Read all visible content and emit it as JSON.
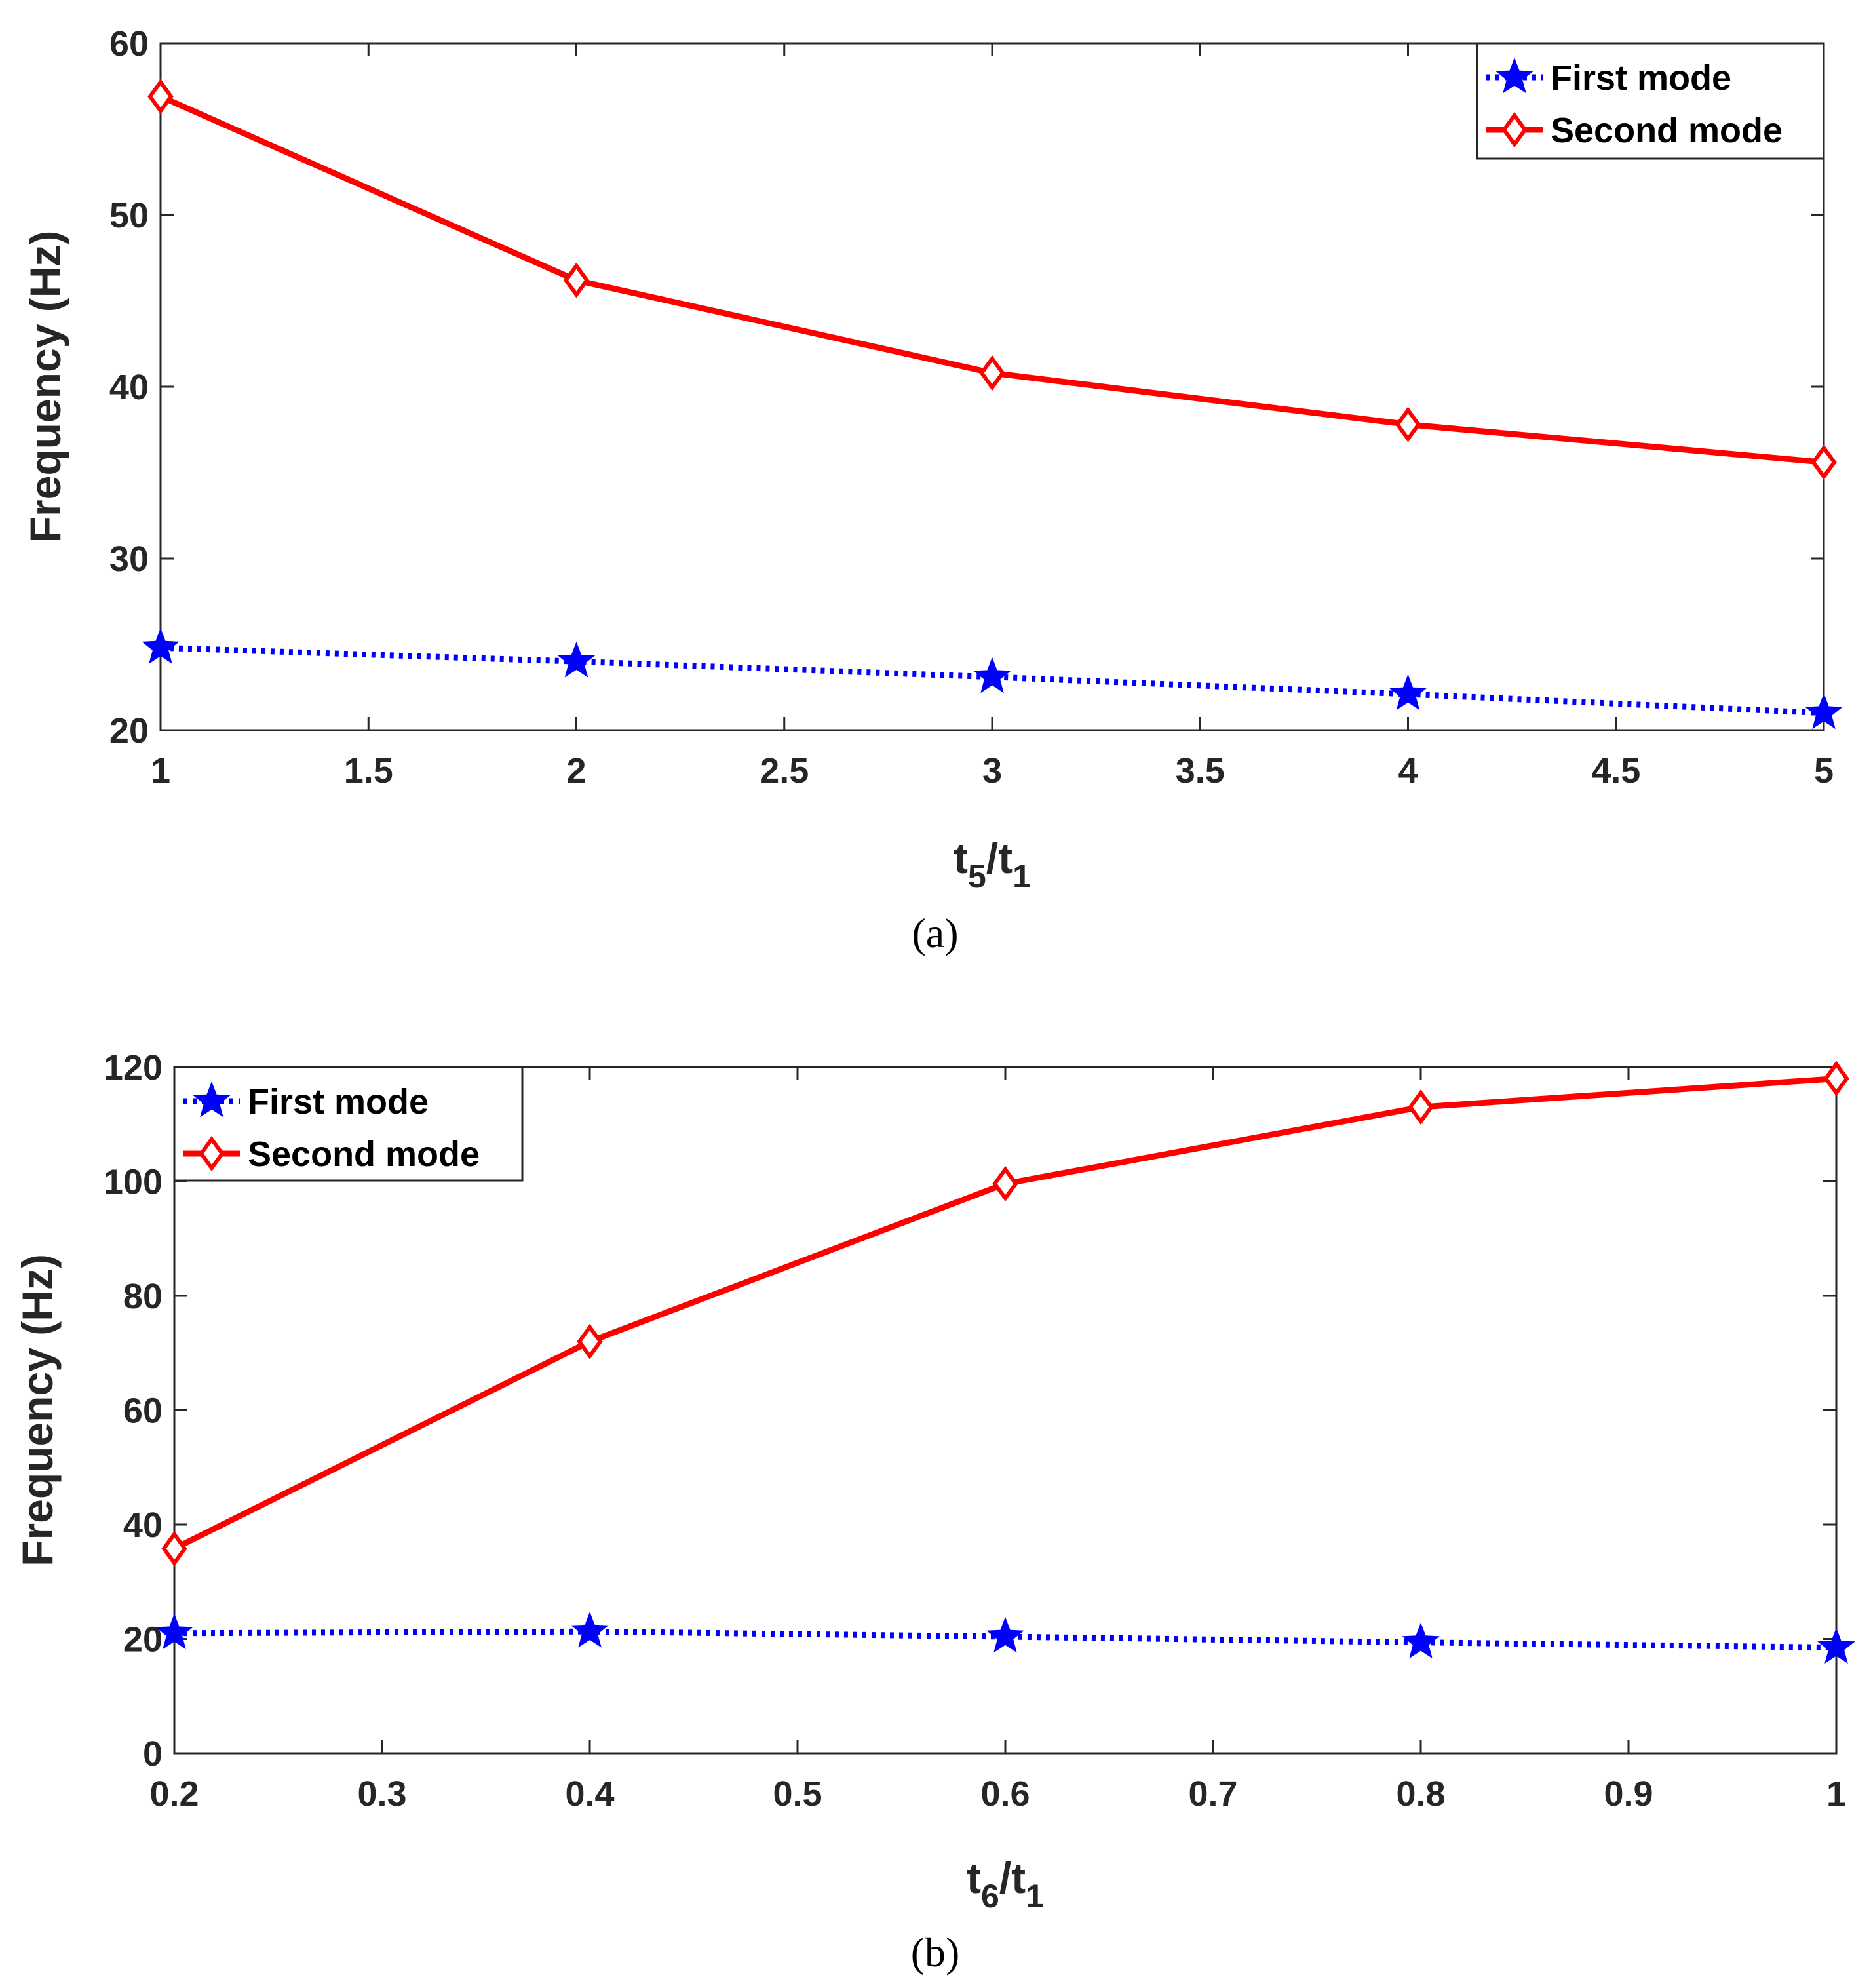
{
  "colors": {
    "first_mode": "#0000ff",
    "second_mode": "#ff0000",
    "axis": "#262626"
  },
  "chart_data": [
    {
      "type": "line",
      "panel": "(a)",
      "xlabel_main": "t",
      "xlabel_num_sub": "5",
      "xlabel_slash": "/t",
      "xlabel_den_sub": "1",
      "ylabel": "Frequency (Hz)",
      "xlim": [
        1,
        5
      ],
      "ylim": [
        20,
        60
      ],
      "xticks": [
        "1",
        "1.5",
        "2",
        "2.5",
        "3",
        "3.5",
        "4",
        "4.5",
        "5"
      ],
      "yticks": [
        "20",
        "30",
        "40",
        "50",
        "60"
      ],
      "legend_position": "top-right",
      "x": [
        1,
        2,
        3,
        4,
        5
      ],
      "series": [
        {
          "name": "First mode",
          "marker": "star",
          "style": "dotted",
          "values": [
            24.8,
            24.0,
            23.1,
            22.1,
            21.0
          ]
        },
        {
          "name": "Second mode",
          "marker": "diamond",
          "style": "solid",
          "values": [
            56.9,
            46.2,
            40.8,
            37.8,
            35.6
          ]
        }
      ]
    },
    {
      "type": "line",
      "panel": "(b)",
      "xlabel_main": "t",
      "xlabel_num_sub": "6",
      "xlabel_slash": "/t",
      "xlabel_den_sub": "1",
      "ylabel": "Frequency (Hz)",
      "xlim": [
        0.2,
        1
      ],
      "ylim": [
        0,
        120
      ],
      "xticks": [
        "0.2",
        "0.3",
        "0.4",
        "0.5",
        "0.6",
        "0.7",
        "0.8",
        "0.9",
        "1"
      ],
      "yticks": [
        "0",
        "20",
        "40",
        "60",
        "80",
        "100",
        "120"
      ],
      "legend_position": "top-left",
      "x": [
        0.2,
        0.4,
        0.6,
        0.8,
        1.0
      ],
      "series": [
        {
          "name": "First mode",
          "marker": "star",
          "style": "dotted",
          "values": [
            21.0,
            21.3,
            20.4,
            19.4,
            18.5
          ]
        },
        {
          "name": "Second mode",
          "marker": "diamond",
          "style": "solid",
          "values": [
            35.8,
            72.0,
            99.6,
            113.0,
            118.0
          ]
        }
      ]
    }
  ]
}
